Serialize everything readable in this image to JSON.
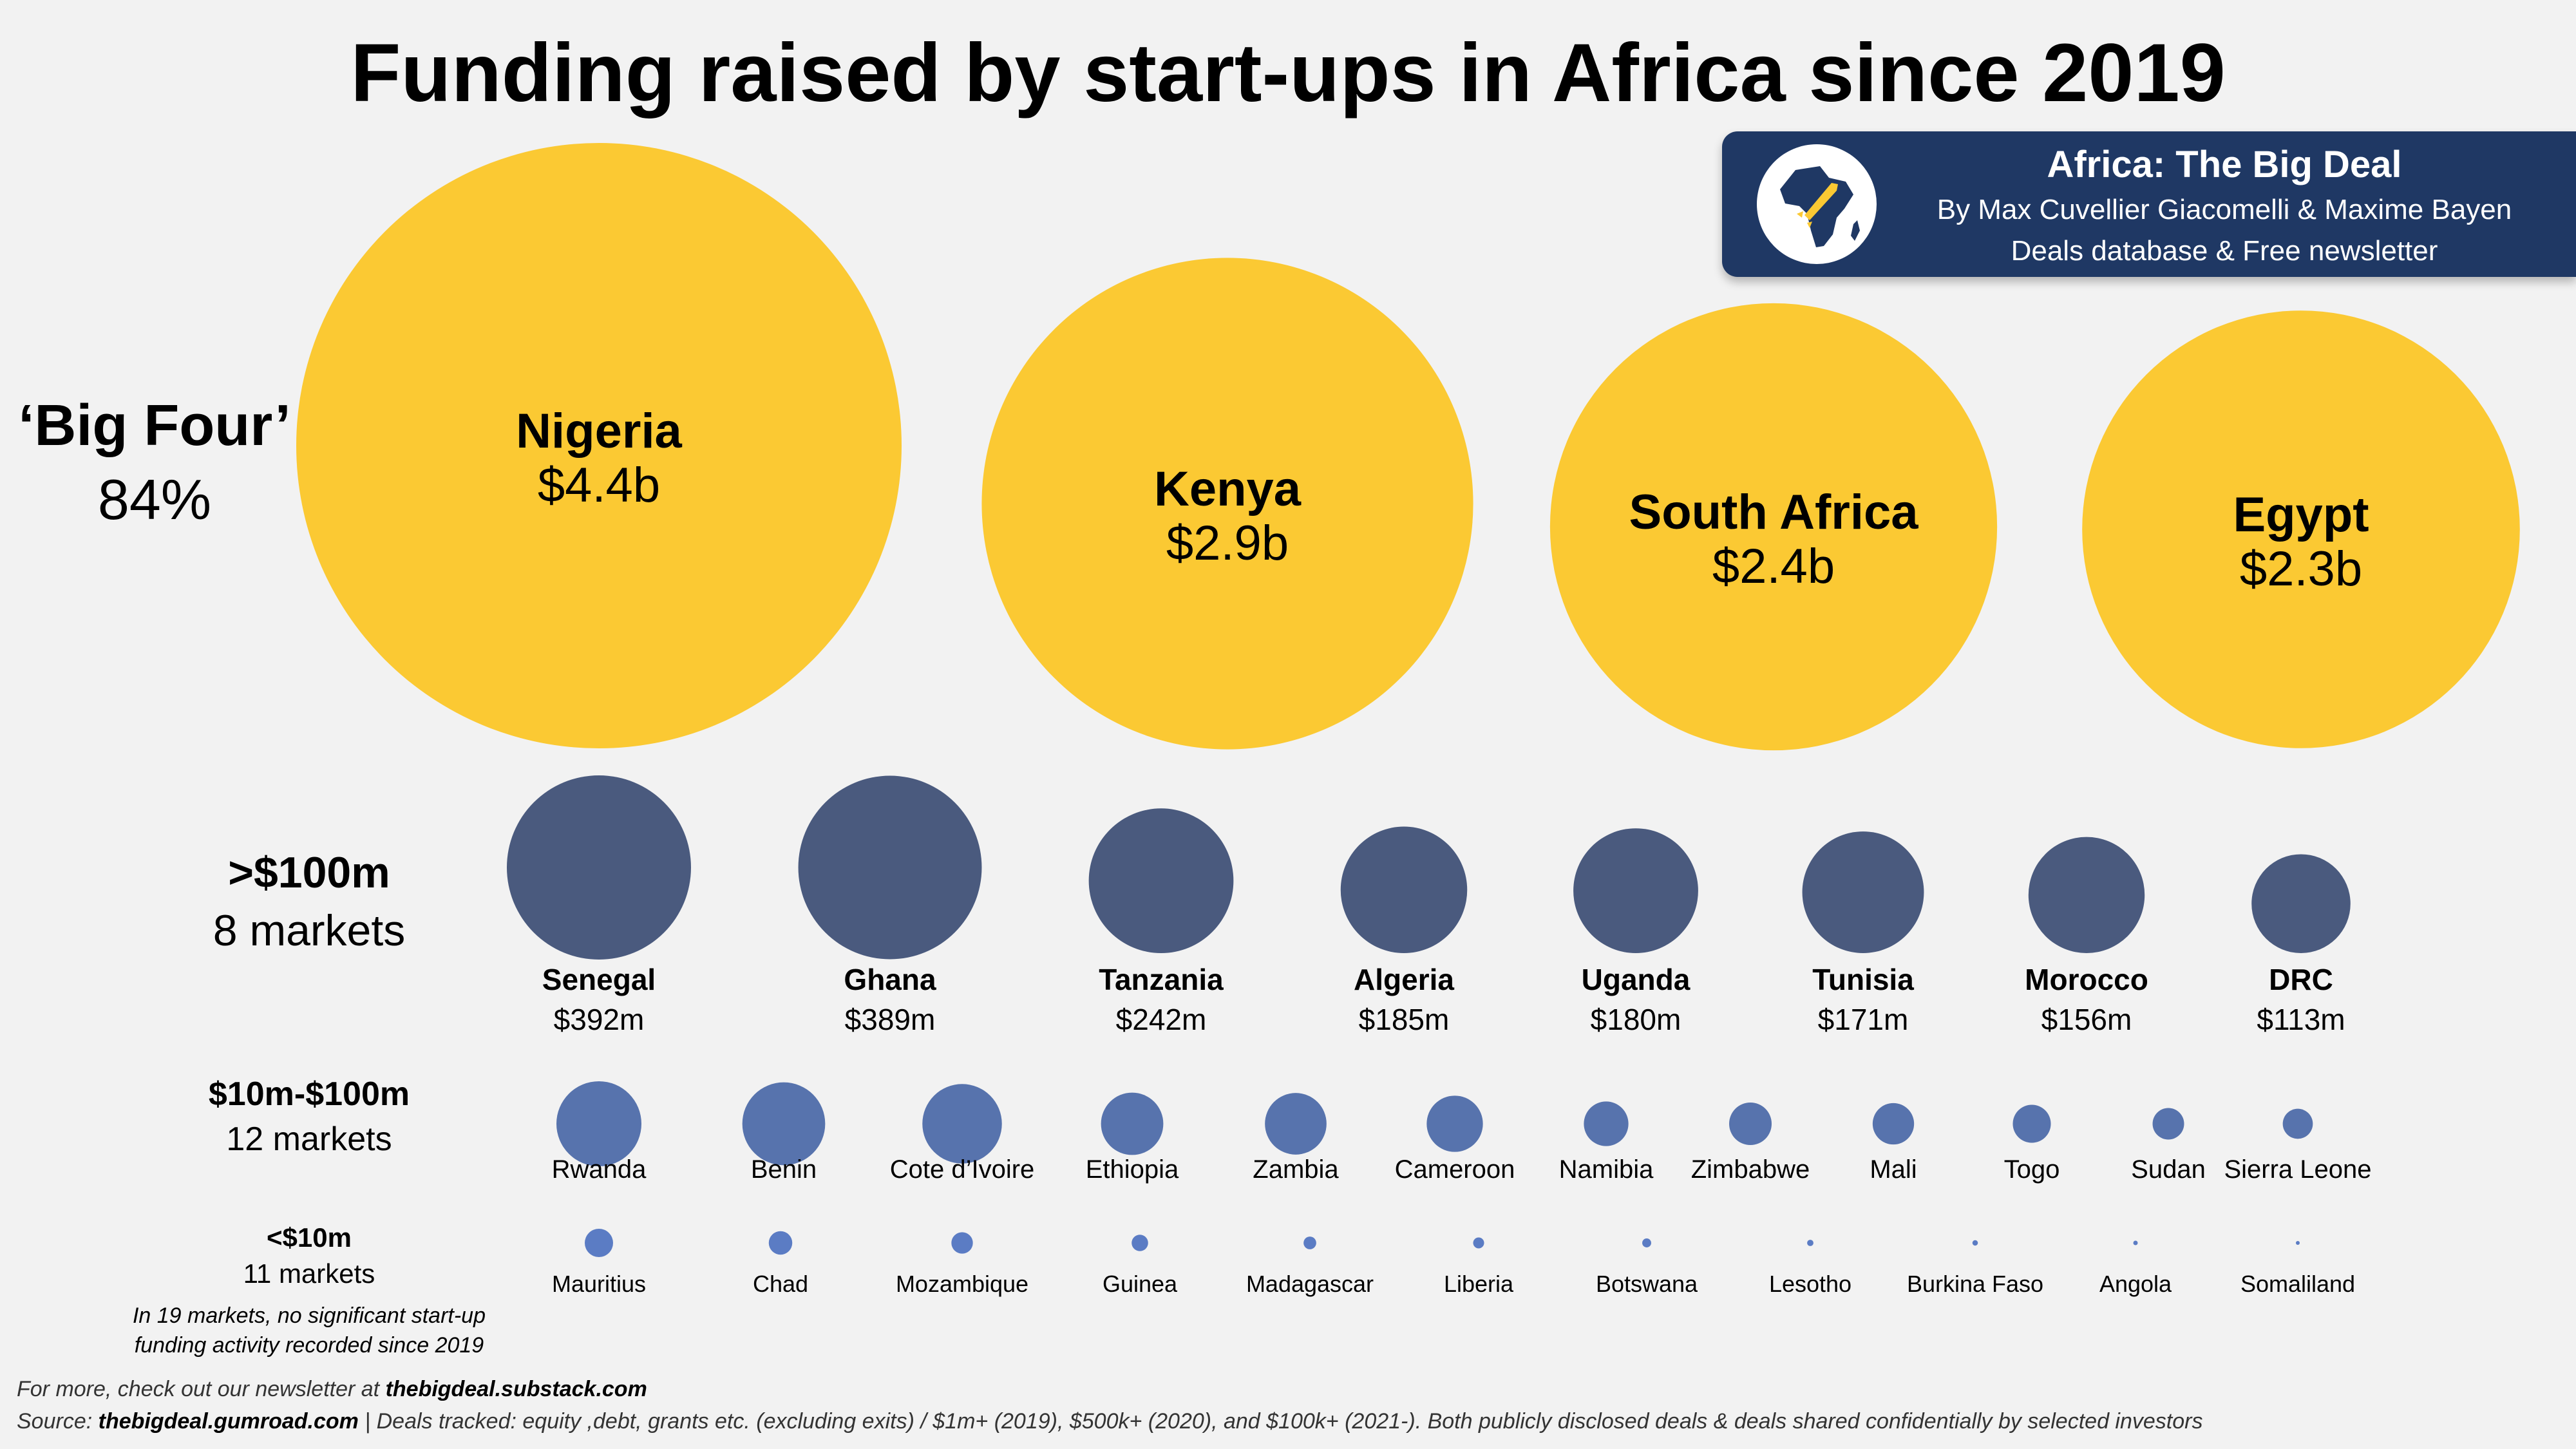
{
  "title": "Funding raised by start-ups in Africa since 2019",
  "brand": {
    "name": "Africa: The Big Deal",
    "authors": "By Max Cuvellier Giacomelli & Maxime Bayen",
    "tagline": "Deals database & Free newsletter",
    "logo_icon": "africa-rocket-icon"
  },
  "colors": {
    "big_four": "#fbc933",
    "over_100m": "#4a5a7e",
    "mid_10_100m": "#5773ad",
    "under_10m": "#5b7cc4",
    "brand_bg": "#1f3864"
  },
  "tiers": {
    "big_four": {
      "label": "‘Big Four’",
      "sublabel": "84%"
    },
    "over_100m": {
      "label": ">$100m",
      "sublabel": "8 markets"
    },
    "mid": {
      "label": "$10m-$100m",
      "sublabel": "12 markets"
    },
    "small": {
      "label": "<$10m",
      "sublabel": "11 markets"
    }
  },
  "note": "In 19 markets, no significant start-up funding activity recorded since 2019",
  "footer": {
    "newsletter_prefix": "For more, check out our newsletter at ",
    "newsletter_link": "thebigdeal.substack.com",
    "source_prefix": "Source: ",
    "source_link": "thebigdeal.gumroad.com",
    "source_rest": " | Deals tracked: equity ,debt, grants etc. (excluding exits) / $1m+ (2019), $500k+ (2020), and $100k+ (2021-). Both publicly disclosed deals & deals shared confidentially by selected investors"
  },
  "chart_data": {
    "type": "bubble",
    "unit": "USD millions",
    "big_four": [
      {
        "country": "Nigeria",
        "value": 4400,
        "label": "$4.4b"
      },
      {
        "country": "Kenya",
        "value": 2900,
        "label": "$2.9b"
      },
      {
        "country": "South Africa",
        "value": 2400,
        "label": "$2.4b"
      },
      {
        "country": "Egypt",
        "value": 2300,
        "label": "$2.3b"
      }
    ],
    "over_100m": [
      {
        "country": "Senegal",
        "value": 392,
        "label": "$392m"
      },
      {
        "country": "Ghana",
        "value": 389,
        "label": "$389m"
      },
      {
        "country": "Tanzania",
        "value": 242,
        "label": "$242m"
      },
      {
        "country": "Algeria",
        "value": 185,
        "label": "$185m"
      },
      {
        "country": "Uganda",
        "value": 180,
        "label": "$180m"
      },
      {
        "country": "Tunisia",
        "value": 171,
        "label": "$171m"
      },
      {
        "country": "Morocco",
        "value": 156,
        "label": "$156m"
      },
      {
        "country": "DRC",
        "value": 113,
        "label": "$113m"
      }
    ],
    "mid": [
      {
        "country": "Rwanda",
        "value": 80
      },
      {
        "country": "Benin",
        "value": 76
      },
      {
        "country": "Cote d’Ivoire",
        "value": 70
      },
      {
        "country": "Ethiopia",
        "value": 43
      },
      {
        "country": "Zambia",
        "value": 42
      },
      {
        "country": "Cameroon",
        "value": 35
      },
      {
        "country": "Namibia",
        "value": 22
      },
      {
        "country": "Zimbabwe",
        "value": 20
      },
      {
        "country": "Mali",
        "value": 19
      },
      {
        "country": "Togo",
        "value": 16
      },
      {
        "country": "Sudan",
        "value": 11
      },
      {
        "country": "Sierra Leone",
        "value": 10
      }
    ],
    "small": [
      {
        "country": "Mauritius",
        "value": 8
      },
      {
        "country": "Chad",
        "value": 5.5
      },
      {
        "country": "Mozambique",
        "value": 4.6
      },
      {
        "country": "Guinea",
        "value": 2.7
      },
      {
        "country": "Madagascar",
        "value": 1.6
      },
      {
        "country": "Liberia",
        "value": 1.2
      },
      {
        "country": "Botswana",
        "value": 0.8
      },
      {
        "country": "Lesotho",
        "value": 0.4
      },
      {
        "country": "Burkina Faso",
        "value": 0.3
      },
      {
        "country": "Angola",
        "value": 0.2
      },
      {
        "country": "Somaliland",
        "value": 0.15
      }
    ]
  }
}
